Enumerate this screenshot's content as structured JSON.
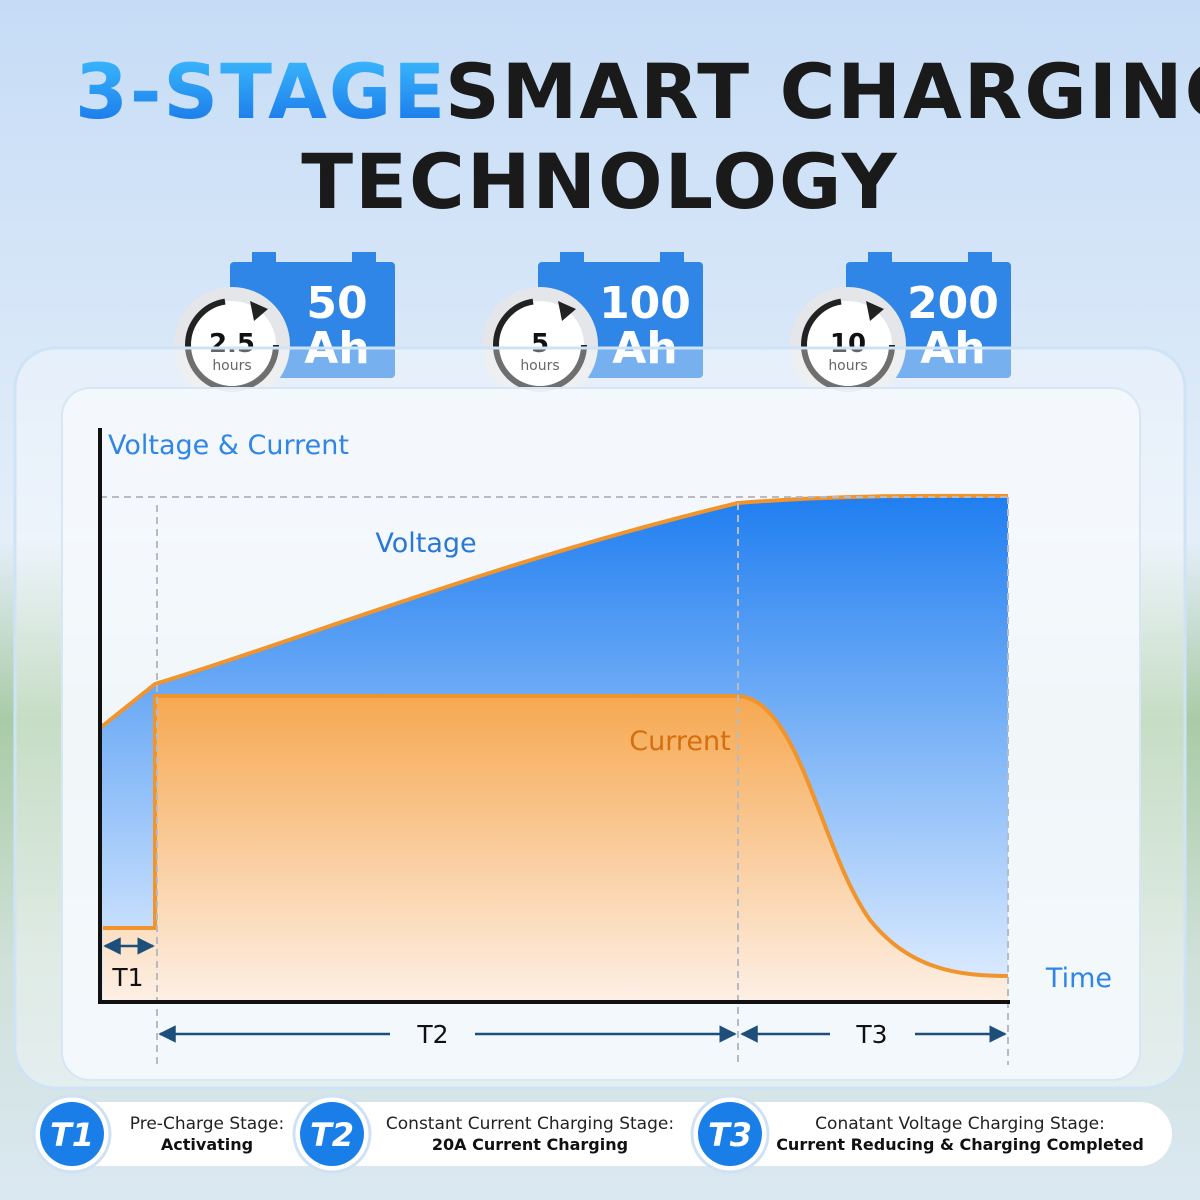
{
  "header": {
    "title_highlight": "3-STAGE",
    "title_rest": "SMART CHARGING",
    "title_line2": "TECHNOLOGY"
  },
  "badges": [
    {
      "time": "2.5",
      "time_unit": "hours",
      "capacity": "50",
      "capacity_unit": "Ah"
    },
    {
      "time": "5",
      "time_unit": "hours",
      "capacity": "100",
      "capacity_unit": "Ah"
    },
    {
      "time": "10",
      "time_unit": "hours",
      "capacity": "200",
      "capacity_unit": "Ah"
    }
  ],
  "diagram": {
    "y_axis_label": "Voltage & Current",
    "x_axis_label": "Time",
    "voltage_label": "Voltage",
    "current_label": "Current",
    "stages": [
      "T1",
      "T2",
      "T3"
    ]
  },
  "legend": [
    {
      "tag": "T1",
      "line1": "Pre-Charge Stage:",
      "line2": "Activating"
    },
    {
      "tag": "T2",
      "line1": "Constant Current Charging Stage:",
      "line2": "20A Current Charging"
    },
    {
      "tag": "T3",
      "line1": "Conatant Voltage Charging Stage:",
      "line2": "Current Reducing & Charging Completed"
    }
  ]
}
